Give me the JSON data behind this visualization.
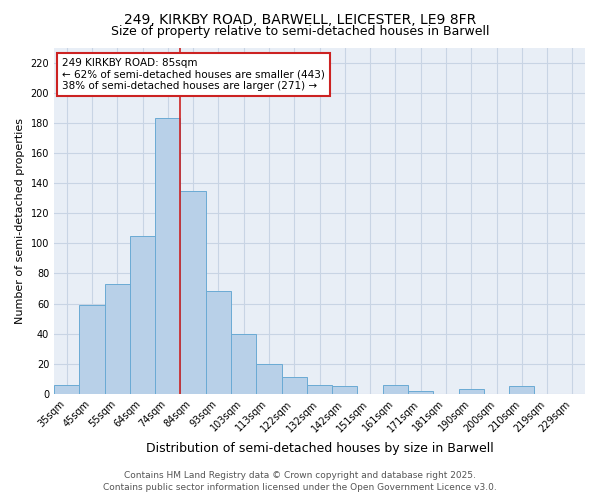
{
  "title": "249, KIRKBY ROAD, BARWELL, LEICESTER, LE9 8FR",
  "subtitle": "Size of property relative to semi-detached houses in Barwell",
  "xlabel": "Distribution of semi-detached houses by size in Barwell",
  "ylabel": "Number of semi-detached properties",
  "categories": [
    "35sqm",
    "45sqm",
    "55sqm",
    "64sqm",
    "74sqm",
    "84sqm",
    "93sqm",
    "103sqm",
    "113sqm",
    "122sqm",
    "132sqm",
    "142sqm",
    "151sqm",
    "161sqm",
    "171sqm",
    "181sqm",
    "190sqm",
    "200sqm",
    "210sqm",
    "219sqm",
    "229sqm"
  ],
  "values": [
    6,
    59,
    73,
    105,
    183,
    135,
    68,
    40,
    20,
    11,
    6,
    5,
    0,
    6,
    2,
    0,
    3,
    0,
    5,
    0,
    0
  ],
  "bar_color": "#b8d0e8",
  "bar_edge_color": "#6aaad4",
  "vline_x_index": 5,
  "vline_color": "#cc2222",
  "annotation_title": "249 KIRKBY ROAD: 85sqm",
  "annotation_line1": "← 62% of semi-detached houses are smaller (443)",
  "annotation_line2": "38% of semi-detached houses are larger (271) →",
  "annotation_box_color": "#cc2222",
  "ylim": [
    0,
    230
  ],
  "yticks": [
    0,
    20,
    40,
    60,
    80,
    100,
    120,
    140,
    160,
    180,
    200,
    220
  ],
  "grid_color": "#c8d4e4",
  "background_color": "#e8eef6",
  "footer_line1": "Contains HM Land Registry data © Crown copyright and database right 2025.",
  "footer_line2": "Contains public sector information licensed under the Open Government Licence v3.0.",
  "title_fontsize": 10,
  "subtitle_fontsize": 9,
  "xlabel_fontsize": 9,
  "ylabel_fontsize": 8,
  "tick_fontsize": 7,
  "annotation_fontsize": 7.5,
  "footer_fontsize": 6.5
}
